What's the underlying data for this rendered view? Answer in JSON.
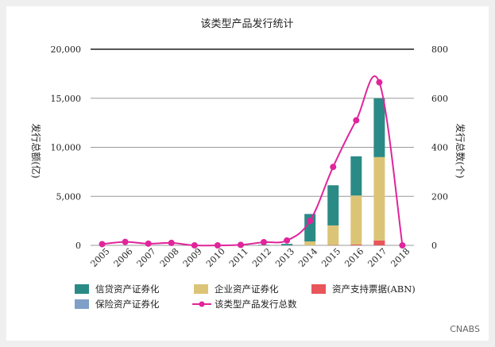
{
  "chart_data": {
    "type": "bar",
    "title": "该类型产品发行统计",
    "ylabel_left": "发行总额(亿)",
    "ylabel_right": "发行总数(个)",
    "categories": [
      "2005",
      "2006",
      "2007",
      "2008",
      "2009",
      "2010",
      "2011",
      "2012",
      "2013",
      "2014",
      "2015",
      "2016",
      "2017",
      "2018"
    ],
    "ylim_left": [
      0,
      20000
    ],
    "ylim_right": [
      0,
      800
    ],
    "yticks_left": [
      "0",
      "5,000",
      "10,000",
      "15,000",
      "20,000"
    ],
    "yticks_right": [
      "0",
      "200",
      "400",
      "600",
      "800"
    ],
    "grid": true,
    "series": [
      {
        "name": "资产支持票据(ABN)",
        "kind": "bar",
        "color": "#e8555a",
        "values": [
          0,
          0,
          0,
          0,
          0,
          0,
          0,
          0,
          0,
          0,
          30,
          80,
          500,
          0
        ]
      },
      {
        "name": "企业资产证券化",
        "kind": "bar",
        "color": "#dcc477",
        "values": [
          0,
          0,
          0,
          0,
          0,
          0,
          0,
          0,
          0,
          400,
          2000,
          5000,
          8500,
          0
        ]
      },
      {
        "name": "保险资产证券化",
        "kind": "bar",
        "color": "#7f9fc9",
        "values": [
          0,
          0,
          0,
          0,
          0,
          0,
          0,
          0,
          0,
          0,
          0,
          0,
          0,
          0
        ]
      },
      {
        "name": "信贷资产证券化",
        "kind": "bar",
        "color": "#2a8a86",
        "values": [
          0,
          0,
          0,
          0,
          0,
          0,
          0,
          50,
          150,
          2800,
          4100,
          4000,
          6000,
          0
        ]
      },
      {
        "name": "该类型产品发行总数",
        "kind": "line",
        "axis": "right",
        "color": "#e0259b",
        "values": [
          5,
          14,
          7,
          10,
          0,
          0,
          2,
          13,
          20,
          100,
          320,
          510,
          665,
          0
        ]
      }
    ],
    "legend": {
      "placement": "bottom",
      "items": [
        {
          "name": "信贷资产证券化",
          "color": "#2a8a86",
          "marker": "box"
        },
        {
          "name": "企业资产证券化",
          "color": "#dcc477",
          "marker": "box"
        },
        {
          "name": "资产支持票据(ABN)",
          "color": "#e8555a",
          "marker": "box"
        },
        {
          "name": "保险资产证券化",
          "color": "#7f9fc9",
          "marker": "box"
        },
        {
          "name": "该类型产品发行总数",
          "color": "#e0259b",
          "marker": "line"
        }
      ]
    },
    "source": "CNABS"
  }
}
